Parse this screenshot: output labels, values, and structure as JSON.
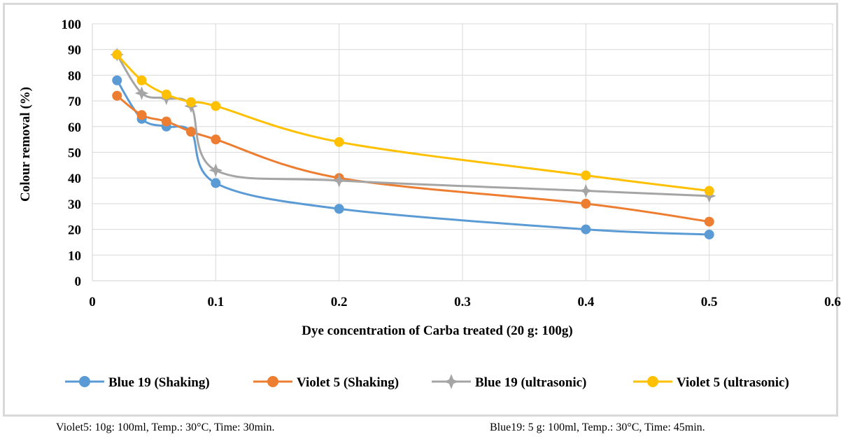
{
  "chart_data": {
    "type": "line",
    "smooth": true,
    "xlabel": "Dye concentration of Carba treated (20 g: 100g)",
    "ylabel": "Colour removal  (%)",
    "xlim": [
      0,
      0.6
    ],
    "ylim": [
      0,
      100
    ],
    "x_ticks": [
      "0",
      "0.1",
      "0.2",
      "0.3",
      "0.4",
      "0.5",
      "0.6"
    ],
    "y_ticks": [
      "0",
      "10",
      "20",
      "30",
      "40",
      "50",
      "60",
      "70",
      "80",
      "90",
      "100"
    ],
    "grid": "on",
    "legend_position": "bottom",
    "x": [
      0.02,
      0.04,
      0.06,
      0.08,
      0.1,
      0.2,
      0.4,
      0.5
    ],
    "series": [
      {
        "name": "Blue 19 (Shaking)",
        "color": "#5b9bd5",
        "marker": "circle",
        "values": [
          78,
          63,
          60,
          58,
          38,
          28,
          20,
          18
        ]
      },
      {
        "name": "Violet 5 (Shaking)",
        "color": "#ed7d31",
        "marker": "circle",
        "values": [
          72,
          64.5,
          62,
          58,
          55,
          40,
          30,
          23
        ]
      },
      {
        "name": "Blue 19 (ultrasonic)",
        "color": "#a5a5a5",
        "marker": "star",
        "values": [
          88,
          73,
          71,
          68,
          43,
          39,
          35,
          33
        ]
      },
      {
        "name": "Violet 5 (ultrasonic)",
        "color": "#ffc000",
        "marker": "circle",
        "values": [
          88,
          78,
          72.5,
          69.5,
          68,
          54,
          41,
          35
        ]
      }
    ]
  },
  "captions": {
    "left": "Violet5: 10g: 100ml, Temp.: 30°C, Time: 30min.",
    "right": "Blue19: 5 g: 100ml, Temp.: 30°C, Time: 45min."
  }
}
